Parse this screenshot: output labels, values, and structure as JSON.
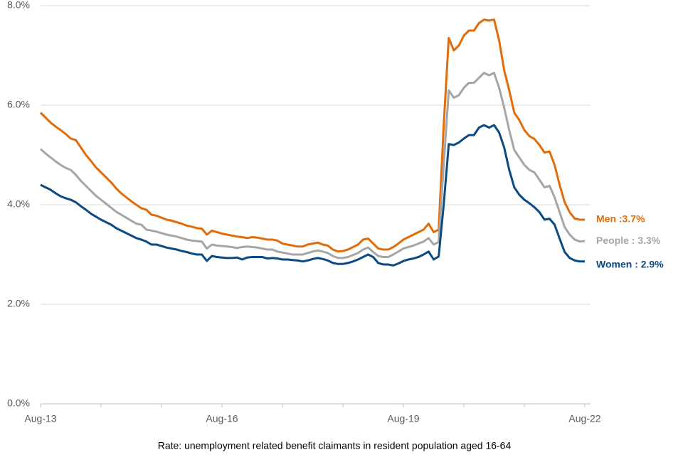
{
  "chart_data": {
    "type": "line",
    "caption": "Rate: unemployment  related benefit claimants in resident population aged 16-64",
    "categories": [
      "Aug-13",
      null,
      null,
      null,
      null,
      null,
      null,
      null,
      null,
      null,
      null,
      null,
      null,
      null,
      null,
      null,
      null,
      null,
      null,
      null,
      null,
      null,
      null,
      null,
      null,
      null,
      null,
      null,
      null,
      null,
      null,
      null,
      null,
      null,
      null,
      null,
      "Aug-16",
      null,
      null,
      null,
      null,
      null,
      null,
      null,
      null,
      null,
      null,
      null,
      null,
      null,
      null,
      null,
      null,
      null,
      null,
      null,
      null,
      null,
      null,
      null,
      null,
      null,
      null,
      null,
      null,
      null,
      null,
      null,
      null,
      null,
      null,
      null,
      "Aug-19",
      null,
      null,
      null,
      null,
      null,
      null,
      null,
      null,
      null,
      null,
      null,
      null,
      null,
      null,
      null,
      null,
      null,
      null,
      null,
      null,
      null,
      null,
      null,
      null,
      null,
      null,
      null,
      null,
      null,
      null,
      null,
      null,
      null,
      null,
      null,
      "Aug-22"
    ],
    "series": [
      {
        "name": "Men",
        "label": "Men :3.7%",
        "color": "#e36c0a",
        "values": [
          5.85,
          5.75,
          5.65,
          5.57,
          5.5,
          5.42,
          5.33,
          5.3,
          5.15,
          5.0,
          4.88,
          4.75,
          4.65,
          4.55,
          4.45,
          4.33,
          4.23,
          4.15,
          4.07,
          4.0,
          3.93,
          3.9,
          3.8,
          3.78,
          3.74,
          3.7,
          3.68,
          3.65,
          3.62,
          3.58,
          3.56,
          3.53,
          3.52,
          3.4,
          3.48,
          3.45,
          3.42,
          3.4,
          3.38,
          3.36,
          3.35,
          3.33,
          3.35,
          3.34,
          3.32,
          3.3,
          3.3,
          3.28,
          3.22,
          3.2,
          3.18,
          3.16,
          3.16,
          3.2,
          3.22,
          3.24,
          3.2,
          3.18,
          3.1,
          3.06,
          3.07,
          3.1,
          3.15,
          3.2,
          3.3,
          3.32,
          3.22,
          3.12,
          3.1,
          3.1,
          3.15,
          3.22,
          3.3,
          3.35,
          3.4,
          3.45,
          3.5,
          3.62,
          3.45,
          3.5,
          5.6,
          7.35,
          7.1,
          7.2,
          7.4,
          7.5,
          7.5,
          7.65,
          7.72,
          7.7,
          7.72,
          7.3,
          6.7,
          6.3,
          5.85,
          5.7,
          5.5,
          5.38,
          5.32,
          5.2,
          5.05,
          5.07,
          4.8,
          4.4,
          4.05,
          3.85,
          3.72,
          3.7,
          3.7
        ]
      },
      {
        "name": "People",
        "label": "People : 3.3%",
        "color": "#a6a6a6",
        "values": [
          5.12,
          5.03,
          4.95,
          4.87,
          4.8,
          4.74,
          4.7,
          4.6,
          4.48,
          4.38,
          4.28,
          4.18,
          4.1,
          4.02,
          3.94,
          3.86,
          3.8,
          3.74,
          3.68,
          3.62,
          3.6,
          3.5,
          3.48,
          3.46,
          3.43,
          3.4,
          3.38,
          3.36,
          3.33,
          3.3,
          3.28,
          3.27,
          3.26,
          3.12,
          3.2,
          3.18,
          3.17,
          3.16,
          3.15,
          3.13,
          3.15,
          3.16,
          3.15,
          3.14,
          3.12,
          3.1,
          3.1,
          3.06,
          3.04,
          3.02,
          3.0,
          3.0,
          3.0,
          3.03,
          3.06,
          3.08,
          3.06,
          3.03,
          2.97,
          2.93,
          2.93,
          2.95,
          2.99,
          3.03,
          3.1,
          3.14,
          3.05,
          2.97,
          2.95,
          2.95,
          3.0,
          3.06,
          3.12,
          3.15,
          3.18,
          3.22,
          3.26,
          3.33,
          3.2,
          3.25,
          4.8,
          6.3,
          6.15,
          6.2,
          6.35,
          6.45,
          6.45,
          6.55,
          6.65,
          6.6,
          6.65,
          6.35,
          5.95,
          5.5,
          5.1,
          4.95,
          4.8,
          4.7,
          4.65,
          4.5,
          4.35,
          4.38,
          4.15,
          3.85,
          3.55,
          3.4,
          3.3,
          3.26,
          3.27
        ]
      },
      {
        "name": "Women",
        "label": "Women : 2.9%",
        "color": "#0b4a82",
        "values": [
          4.4,
          4.35,
          4.3,
          4.23,
          4.17,
          4.13,
          4.1,
          4.05,
          3.97,
          3.9,
          3.82,
          3.76,
          3.7,
          3.65,
          3.6,
          3.53,
          3.48,
          3.43,
          3.38,
          3.33,
          3.3,
          3.26,
          3.2,
          3.2,
          3.17,
          3.14,
          3.12,
          3.1,
          3.07,
          3.05,
          3.02,
          3.0,
          3.0,
          2.87,
          2.97,
          2.95,
          2.94,
          2.93,
          2.93,
          2.94,
          2.9,
          2.94,
          2.95,
          2.95,
          2.95,
          2.92,
          2.93,
          2.92,
          2.9,
          2.9,
          2.89,
          2.88,
          2.86,
          2.88,
          2.91,
          2.93,
          2.91,
          2.88,
          2.83,
          2.81,
          2.81,
          2.83,
          2.86,
          2.9,
          2.95,
          3.0,
          2.95,
          2.83,
          2.8,
          2.8,
          2.78,
          2.82,
          2.87,
          2.9,
          2.92,
          2.95,
          3.0,
          3.06,
          2.9,
          2.96,
          4.0,
          5.22,
          5.2,
          5.25,
          5.33,
          5.4,
          5.4,
          5.55,
          5.6,
          5.55,
          5.6,
          5.45,
          5.15,
          4.7,
          4.35,
          4.2,
          4.1,
          4.03,
          3.95,
          3.85,
          3.7,
          3.72,
          3.6,
          3.32,
          3.05,
          2.93,
          2.88,
          2.86,
          2.86
        ]
      }
    ],
    "ylim": [
      0,
      8
    ],
    "yticks": [
      {
        "value": 0,
        "label": "0.0%"
      },
      {
        "value": 2,
        "label": "2.0%"
      },
      {
        "value": 4,
        "label": "4.0%"
      },
      {
        "value": 6,
        "label": "6.0%"
      },
      {
        "value": 8,
        "label": "8.0%"
      }
    ],
    "grid": true
  }
}
